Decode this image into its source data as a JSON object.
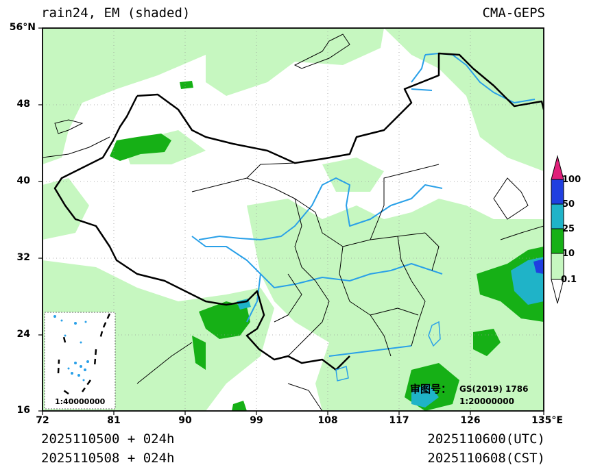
{
  "header": {
    "title_left": "rain24, EM (shaded)",
    "title_right": "CMA-GEPS"
  },
  "axes": {
    "lat_ticks": [
      "56°N",
      "48",
      "40",
      "32",
      "24",
      "16"
    ],
    "lon_ticks": [
      "72",
      "81",
      "90",
      "99",
      "108",
      "117",
      "126",
      "135°E"
    ],
    "lat_range": [
      16,
      56
    ],
    "lon_range": [
      72,
      135
    ],
    "grid": "dotted"
  },
  "colorbar": {
    "levels": [
      "100",
      "50",
      "25",
      "10",
      "0.1"
    ],
    "colors": [
      "#e0207a",
      "#1f3fe0",
      "#1fb3c8",
      "#16b016",
      "#c6f7c0"
    ]
  },
  "map": {
    "review_label": "审图号：",
    "review_number": "GS(2019) 1786",
    "scale_main": "1:20000000",
    "scale_inset": "1:40000000",
    "colors": {
      "light_rain": "#c6f7c0",
      "moderate_rain": "#16b016",
      "heavy_rain": "#1fb3c8",
      "very_heavy_rain": "#1f3fe0",
      "river": "#29a0e8",
      "border": "#000000"
    }
  },
  "footer": {
    "init_utc": "2025110500 + 024h",
    "init_cst": "2025110508 + 024h",
    "valid_utc": "2025110600(UTC)",
    "valid_cst": "2025110608(CST)"
  }
}
